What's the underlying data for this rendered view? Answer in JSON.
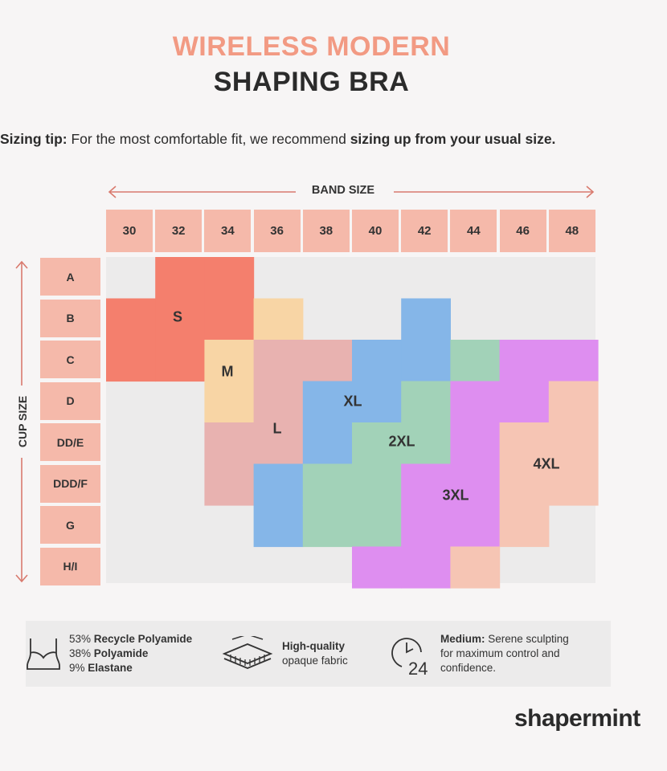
{
  "title": {
    "line1": "WIRELESS MODERN",
    "line2": "SHAPING BRA"
  },
  "tip": {
    "label": "Sizing tip:",
    "text": " For the most comfortable fit, we recommend ",
    "emphasis": "sizing up from your usual size."
  },
  "band_label": "BAND SIZE",
  "cup_label": "CUP SIZE",
  "band_sizes": [
    "30",
    "32",
    "34",
    "36",
    "38",
    "40",
    "42",
    "44",
    "46",
    "48"
  ],
  "cup_sizes": [
    "A",
    "B",
    "C",
    "D",
    "DD/E",
    "DDD/F",
    "G",
    "H/I"
  ],
  "sizes": [
    {
      "label": "S",
      "color": "#f47f6d"
    },
    {
      "label": "M",
      "color": "#f8d5a5"
    },
    {
      "label": "L",
      "color": "#e8b2b0"
    },
    {
      "label": "XL",
      "color": "#85b6e8"
    },
    {
      "label": "2XL",
      "color": "#a2d2b8"
    },
    {
      "label": "3XL",
      "color": "#de8ef0"
    },
    {
      "label": "4XL",
      "color": "#f6c5b4"
    }
  ],
  "features": {
    "material": {
      "line1_pct": "53%",
      "line1_name": "Recycle Polyamide",
      "line2_pct": "38%",
      "line2_name": "Polyamide",
      "line3_pct": "9%",
      "line3_name": "Elastane"
    },
    "fabric": {
      "bold": "High-quality",
      "text": "opaque fabric"
    },
    "compression": {
      "bold": "Medium:",
      "text1": " Serene sculpting",
      "text2": "for maximum control and",
      "text3": "confidence.",
      "icon_number": "24"
    }
  },
  "brand": "shapermint",
  "icons": [
    "bra-icon",
    "fabric-layers-icon",
    "clock-24-icon",
    "arrow-left-icon",
    "arrow-right-icon",
    "arrow-up-icon",
    "arrow-down-icon"
  ]
}
